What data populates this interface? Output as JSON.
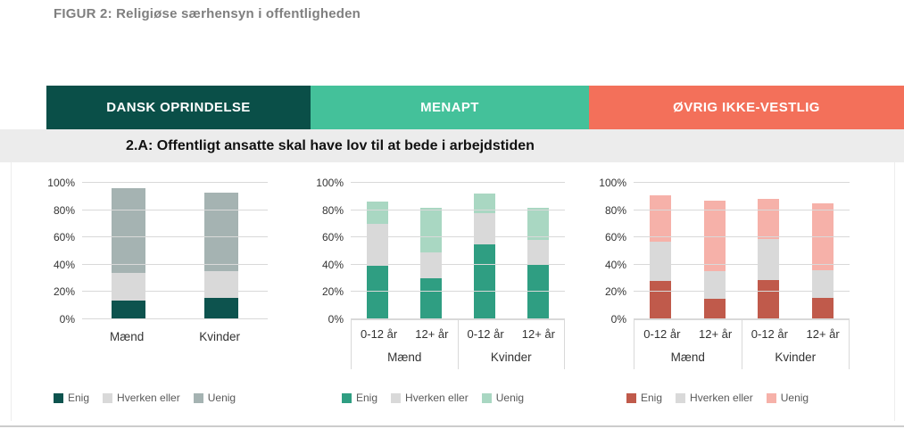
{
  "page": {
    "title": "FIGUR 2: Religiøse særhensyn i offentligheden",
    "subtitle": "2.A: Offentligt ansatte skal have lov til at bede i arbejdstiden",
    "colors": {
      "title_text": "#7f7f7f",
      "subtitle_bg": "#ececec",
      "gridline": "#d9d9d9",
      "bottom_rule": "#cccccc"
    }
  },
  "bands": [
    {
      "label": "DANSK OPRINDELSE",
      "color": "#0a4f48"
    },
    {
      "label": "MENAPT",
      "color": "#44c19a"
    },
    {
      "label": "ØVRIG IKKE-VESTLIG",
      "color": "#f3705a"
    }
  ],
  "chart_data": [
    {
      "type": "bar",
      "stacked": true,
      "title": "DANSK OPRINDELSE",
      "categories": [
        "Mænd",
        "Kvinder"
      ],
      "series": [
        {
          "name": "Enig",
          "color": "#0d534e",
          "values": [
            14,
            16
          ]
        },
        {
          "name": "Hverken eller",
          "color": "#d9d9d9",
          "values": [
            20,
            19
          ]
        },
        {
          "name": "Uenig",
          "color": "#a5b3b2",
          "values": [
            62,
            58
          ]
        }
      ],
      "ylim": [
        0,
        100
      ],
      "yticks_pct": [
        0,
        20,
        40,
        60,
        80,
        100
      ],
      "ytick_suffix": "%",
      "grid": true,
      "legend_position": "bottom"
    },
    {
      "type": "bar",
      "stacked": true,
      "title": "MENAPT",
      "groups": [
        {
          "label": "Mænd",
          "categories": [
            "0-12 år",
            "12+ år"
          ]
        },
        {
          "label": "Kvinder",
          "categories": [
            "0-12 år",
            "12+ år"
          ]
        }
      ],
      "series": [
        {
          "name": "Enig",
          "color": "#2f9e82",
          "values": [
            39,
            30,
            55,
            40
          ]
        },
        {
          "name": "Hverken eller",
          "color": "#d9d9d9",
          "values": [
            31,
            19,
            23,
            18
          ]
        },
        {
          "name": "Uenig",
          "color": "#a9d7c2",
          "values": [
            16,
            33,
            14,
            24
          ]
        }
      ],
      "ylim": [
        0,
        100
      ],
      "yticks_pct": [
        0,
        20,
        40,
        60,
        80,
        100
      ],
      "ytick_suffix": "%",
      "grid": true,
      "legend_position": "bottom"
    },
    {
      "type": "bar",
      "stacked": true,
      "title": "ØVRIG IKKE-VESTLIG",
      "groups": [
        {
          "label": "Mænd",
          "categories": [
            "0-12 år",
            "12+ år"
          ]
        },
        {
          "label": "Kvinder",
          "categories": [
            "0-12 år",
            "12+ år"
          ]
        }
      ],
      "series": [
        {
          "name": "Enig",
          "color": "#c05a4b",
          "values": [
            28,
            15,
            29,
            16
          ]
        },
        {
          "name": "Hverken eller",
          "color": "#d9d9d9",
          "values": [
            29,
            20,
            30,
            20
          ]
        },
        {
          "name": "Uenig",
          "color": "#f6b1a9",
          "values": [
            34,
            52,
            29,
            49
          ]
        }
      ],
      "ylim": [
        0,
        100
      ],
      "yticks_pct": [
        0,
        20,
        40,
        60,
        80,
        100
      ],
      "ytick_suffix": "%",
      "grid": true,
      "legend_position": "bottom"
    }
  ]
}
